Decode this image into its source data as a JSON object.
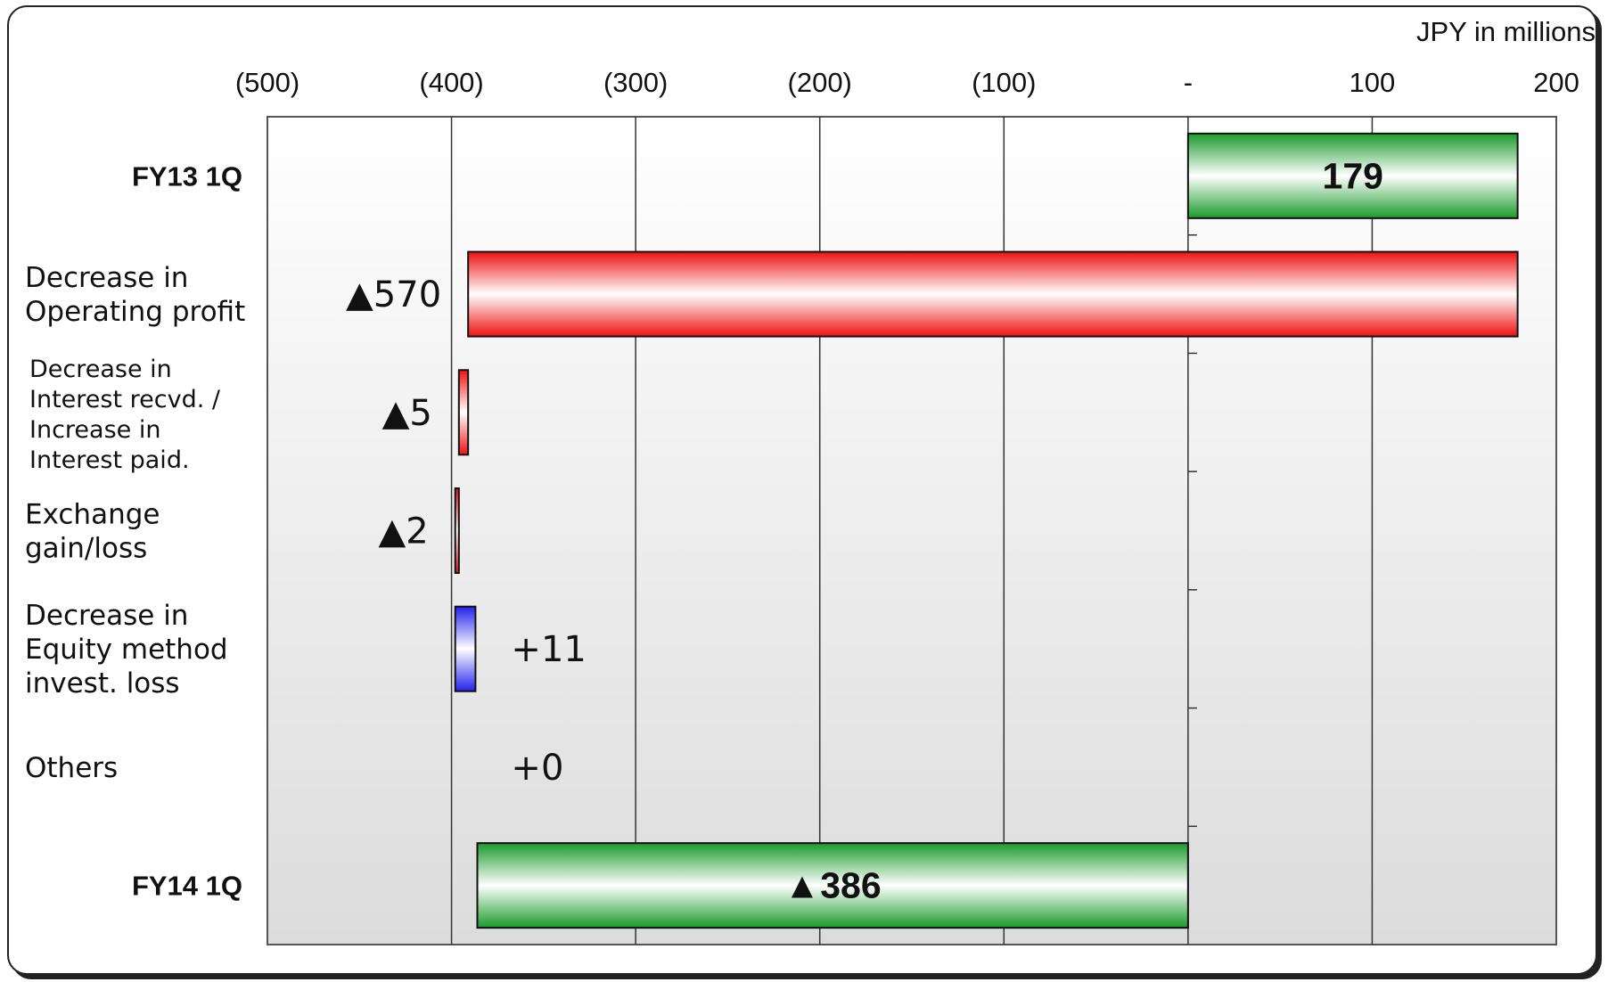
{
  "chart_data": {
    "type": "bar",
    "unit_label": "JPY in millions",
    "x_ticks": [
      {
        "value": -500,
        "label": "(500)"
      },
      {
        "value": -400,
        "label": "(400)"
      },
      {
        "value": -300,
        "label": "(300)"
      },
      {
        "value": -200,
        "label": "(200)"
      },
      {
        "value": -100,
        "label": "(100)"
      },
      {
        "value": 0,
        "label": "-"
      },
      {
        "value": 100,
        "label": "100"
      },
      {
        "value": 200,
        "label": "200"
      }
    ],
    "xlim": [
      -500,
      200
    ],
    "categories": [
      {
        "key": "fy13",
        "lines": [
          "FY13 1Q"
        ],
        "style": "bold",
        "start": 0,
        "end": 179,
        "kind": "total",
        "value_label": "179",
        "label_pos": "inside"
      },
      {
        "key": "op",
        "lines": [
          "Decrease in",
          "Operating profit"
        ],
        "style": "normal",
        "start": 179,
        "end": -391,
        "kind": "decrease",
        "value_label": "▲570",
        "label_pos": "left"
      },
      {
        "key": "interest",
        "lines": [
          "Decrease in",
          "Interest recvd. /",
          "Increase in",
          "Interest paid."
        ],
        "style": "small",
        "start": -391,
        "end": -396,
        "kind": "decrease",
        "value_label": "▲5",
        "label_pos": "left"
      },
      {
        "key": "fx",
        "lines": [
          "Exchange",
          "gain/loss"
        ],
        "style": "normal",
        "start": -396,
        "end": -398,
        "kind": "decrease",
        "value_label": "▲2",
        "label_pos": "left"
      },
      {
        "key": "equity",
        "lines": [
          "Decrease in",
          "Equity method",
          "invest. loss"
        ],
        "style": "normal",
        "start": -398,
        "end": -387,
        "kind": "increase",
        "value_label": "+11",
        "label_pos": "right"
      },
      {
        "key": "others",
        "lines": [
          "Others"
        ],
        "style": "normal",
        "start": -387,
        "end": -387,
        "kind": "none",
        "value_label": "+0",
        "label_pos": "right"
      },
      {
        "key": "fy14",
        "lines": [
          "FY14 1Q"
        ],
        "style": "bold",
        "start": 0,
        "end": -386,
        "kind": "total",
        "value_label": "▲386",
        "label_pos": "inside"
      }
    ],
    "colors": {
      "total": "#1a9a2a",
      "decrease": "#ee1111",
      "increase": "#2222ee"
    },
    "grid": true
  }
}
